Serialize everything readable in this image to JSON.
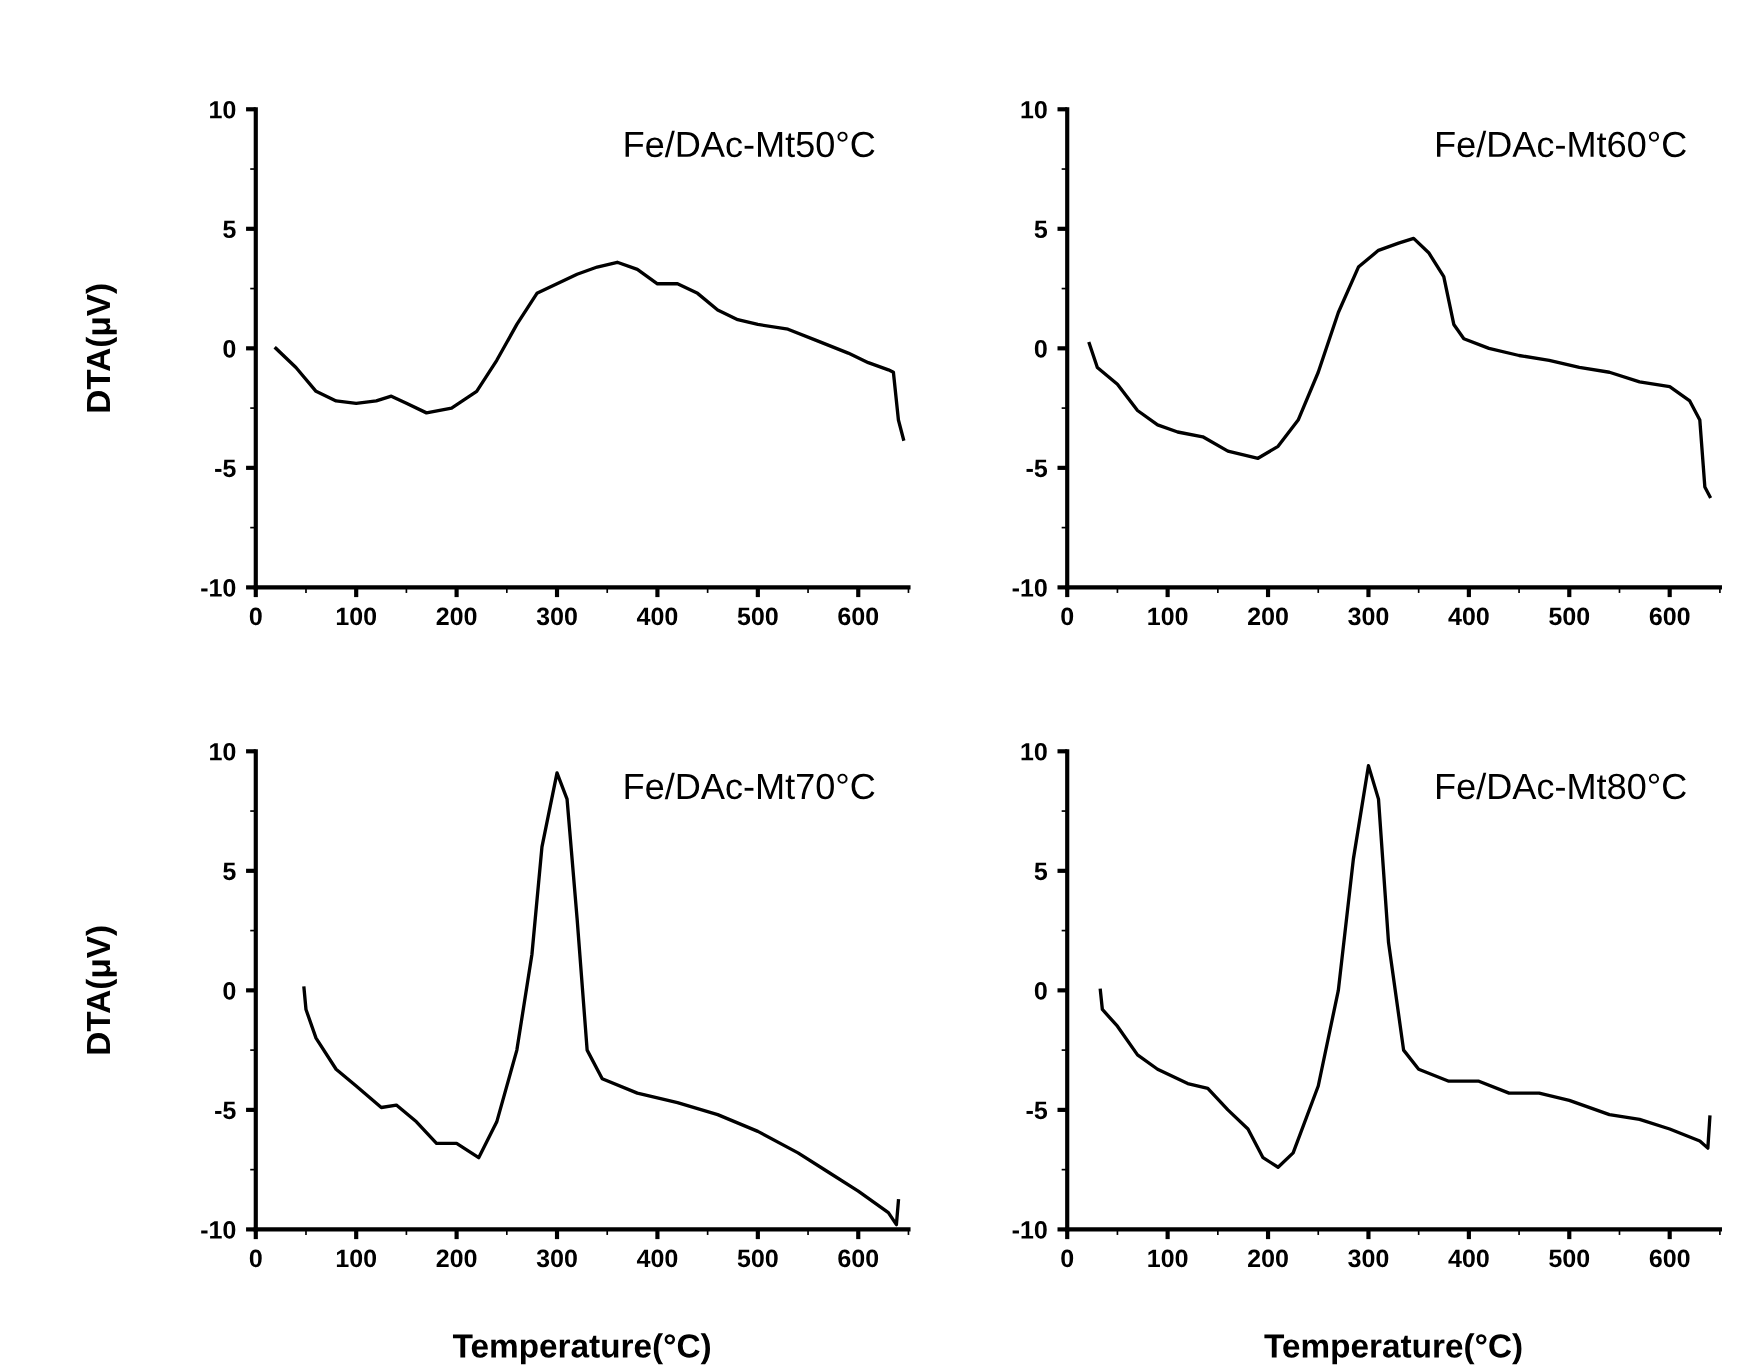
{
  "chart_data": [
    {
      "type": "line",
      "ylabel": "DTA(μV)",
      "annotations": [
        "Fe/DAc-Mt50°C"
      ],
      "xlim": [
        0,
        650
      ],
      "ylim": [
        -10,
        10
      ],
      "xticks": [
        0,
        100,
        200,
        300,
        400,
        500,
        600
      ],
      "yticks": [
        -10,
        -5,
        0,
        5,
        10
      ],
      "grid": false,
      "legend": false,
      "series": [
        {
          "color": "#000000",
          "x": [
            20,
            40,
            60,
            80,
            100,
            120,
            135,
            150,
            170,
            195,
            220,
            240,
            260,
            280,
            300,
            320,
            340,
            360,
            380,
            400,
            420,
            440,
            460,
            480,
            500,
            530,
            560,
            590,
            610,
            630,
            635,
            640,
            645
          ],
          "values": [
            0,
            -0.8,
            -1.8,
            -2.2,
            -2.3,
            -2.2,
            -2.0,
            -2.3,
            -2.7,
            -2.5,
            -1.8,
            -0.5,
            1.0,
            2.3,
            2.7,
            3.1,
            3.4,
            3.6,
            3.3,
            2.7,
            2.7,
            2.3,
            1.6,
            1.2,
            1.0,
            0.8,
            0.3,
            -0.2,
            -0.6,
            -0.9,
            -1.0,
            -3.0,
            -3.8
          ]
        }
      ]
    },
    {
      "type": "line",
      "annotations": [
        "Fe/DAc-Mt60°C"
      ],
      "xlim": [
        0,
        650
      ],
      "ylim": [
        -10,
        10
      ],
      "xticks": [
        0,
        100,
        200,
        300,
        400,
        500,
        600
      ],
      "yticks": [
        -10,
        -5,
        0,
        5,
        10
      ],
      "grid": false,
      "legend": false,
      "series": [
        {
          "color": "#000000",
          "x": [
            22,
            30,
            50,
            70,
            90,
            110,
            135,
            160,
            190,
            210,
            230,
            250,
            270,
            290,
            310,
            330,
            345,
            360,
            375,
            385,
            395,
            420,
            450,
            480,
            510,
            540,
            570,
            600,
            620,
            630,
            635,
            640
          ],
          "values": [
            0.2,
            -0.8,
            -1.5,
            -2.6,
            -3.2,
            -3.5,
            -3.7,
            -4.3,
            -4.6,
            -4.1,
            -3.0,
            -1.0,
            1.5,
            3.4,
            4.1,
            4.4,
            4.6,
            4.0,
            3.0,
            1.0,
            0.4,
            0.0,
            -0.3,
            -0.5,
            -0.8,
            -1.0,
            -1.4,
            -1.6,
            -2.2,
            -3.0,
            -5.8,
            -6.2
          ]
        }
      ]
    },
    {
      "type": "line",
      "xlabel": "Temperature(°C)",
      "ylabel": "DTA(μV)",
      "annotations": [
        "Fe/DAc-Mt70°C"
      ],
      "xlim": [
        0,
        650
      ],
      "ylim": [
        -10,
        10
      ],
      "xticks": [
        0,
        100,
        200,
        300,
        400,
        500,
        600
      ],
      "yticks": [
        -10,
        -5,
        0,
        5,
        10
      ],
      "grid": false,
      "legend": false,
      "series": [
        {
          "color": "#000000",
          "x": [
            48,
            50,
            60,
            80,
            100,
            125,
            140,
            160,
            180,
            200,
            222,
            240,
            260,
            275,
            285,
            300,
            310,
            320,
            330,
            345,
            380,
            420,
            460,
            500,
            540,
            570,
            600,
            630,
            638,
            640
          ],
          "values": [
            0.1,
            -0.8,
            -2.0,
            -3.3,
            -4.0,
            -4.9,
            -4.8,
            -5.5,
            -6.4,
            -6.4,
            -7.0,
            -5.5,
            -2.5,
            1.5,
            6.0,
            9.1,
            8.0,
            3.0,
            -2.5,
            -3.7,
            -4.3,
            -4.7,
            -5.2,
            -5.9,
            -6.8,
            -7.6,
            -8.4,
            -9.3,
            -9.8,
            -8.8
          ]
        }
      ]
    },
    {
      "type": "line",
      "xlabel": "Temperature(°C)",
      "annotations": [
        "Fe/DAc-Mt80°C"
      ],
      "xlim": [
        0,
        650
      ],
      "ylim": [
        -10,
        10
      ],
      "xticks": [
        0,
        100,
        200,
        300,
        400,
        500,
        600
      ],
      "yticks": [
        -10,
        -5,
        0,
        5,
        10
      ],
      "grid": false,
      "legend": false,
      "series": [
        {
          "color": "#000000",
          "x": [
            33,
            35,
            50,
            70,
            90,
            120,
            140,
            160,
            180,
            195,
            210,
            225,
            250,
            270,
            285,
            300,
            310,
            320,
            335,
            350,
            380,
            410,
            440,
            470,
            500,
            540,
            570,
            600,
            630,
            638,
            640
          ],
          "values": [
            0,
            -0.8,
            -1.5,
            -2.7,
            -3.3,
            -3.9,
            -4.1,
            -5.0,
            -5.8,
            -7.0,
            -7.4,
            -6.8,
            -4.0,
            0.0,
            5.5,
            9.4,
            8.0,
            2.0,
            -2.5,
            -3.3,
            -3.8,
            -3.8,
            -4.3,
            -4.3,
            -4.6,
            -5.2,
            -5.4,
            -5.8,
            -6.3,
            -6.6,
            -5.3
          ]
        }
      ]
    }
  ]
}
